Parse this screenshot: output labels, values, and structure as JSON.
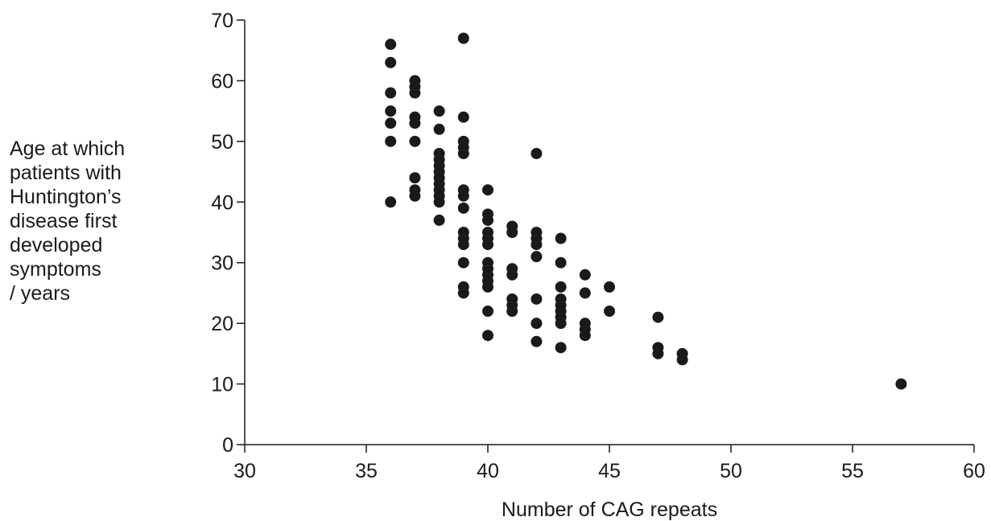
{
  "chart_data": {
    "type": "scatter",
    "title": "",
    "xlabel": "Number of CAG repeats",
    "ylabel_lines": [
      "Age at which",
      "patients with",
      "Huntington’s",
      "disease first",
      "developed",
      "symptoms",
      "/ years"
    ],
    "xlim": [
      30,
      60
    ],
    "ylim": [
      0,
      70
    ],
    "x_ticks": [
      30,
      35,
      40,
      45,
      50,
      55,
      60
    ],
    "y_ticks": [
      0,
      10,
      20,
      30,
      40,
      50,
      60,
      70
    ],
    "grid": false,
    "marker_color": "#1a1a1a",
    "points": [
      [
        36,
        66
      ],
      [
        36,
        63
      ],
      [
        36,
        58
      ],
      [
        36,
        55
      ],
      [
        36,
        53
      ],
      [
        36,
        50
      ],
      [
        36,
        40
      ],
      [
        37,
        60
      ],
      [
        37,
        59
      ],
      [
        37,
        58
      ],
      [
        37,
        54
      ],
      [
        37,
        53
      ],
      [
        37,
        50
      ],
      [
        37,
        44
      ],
      [
        37,
        42
      ],
      [
        37,
        41
      ],
      [
        38,
        55
      ],
      [
        38,
        52
      ],
      [
        38,
        48
      ],
      [
        38,
        47
      ],
      [
        38,
        46
      ],
      [
        38,
        45
      ],
      [
        38,
        44
      ],
      [
        38,
        43
      ],
      [
        38,
        42
      ],
      [
        38,
        41
      ],
      [
        38,
        40
      ],
      [
        38,
        37
      ],
      [
        39,
        67
      ],
      [
        39,
        54
      ],
      [
        39,
        50
      ],
      [
        39,
        49
      ],
      [
        39,
        48
      ],
      [
        39,
        42
      ],
      [
        39,
        41
      ],
      [
        39,
        39
      ],
      [
        39,
        35
      ],
      [
        39,
        34
      ],
      [
        39,
        33
      ],
      [
        39,
        30
      ],
      [
        39,
        26
      ],
      [
        39,
        25
      ],
      [
        40,
        42
      ],
      [
        40,
        38
      ],
      [
        40,
        37
      ],
      [
        40,
        35
      ],
      [
        40,
        34
      ],
      [
        40,
        33
      ],
      [
        40,
        30
      ],
      [
        40,
        29
      ],
      [
        40,
        28
      ],
      [
        40,
        27
      ],
      [
        40,
        26
      ],
      [
        40,
        22
      ],
      [
        40,
        18
      ],
      [
        41,
        36
      ],
      [
        41,
        35
      ],
      [
        41,
        29
      ],
      [
        41,
        28
      ],
      [
        41,
        24
      ],
      [
        41,
        23
      ],
      [
        41,
        22
      ],
      [
        42,
        48
      ],
      [
        42,
        35
      ],
      [
        42,
        34
      ],
      [
        42,
        33
      ],
      [
        42,
        31
      ],
      [
        42,
        24
      ],
      [
        42,
        20
      ],
      [
        42,
        17
      ],
      [
        43,
        34
      ],
      [
        43,
        30
      ],
      [
        43,
        26
      ],
      [
        43,
        24
      ],
      [
        43,
        23
      ],
      [
        43,
        22
      ],
      [
        43,
        21
      ],
      [
        43,
        20
      ],
      [
        43,
        16
      ],
      [
        44,
        28
      ],
      [
        44,
        25
      ],
      [
        44,
        20
      ],
      [
        44,
        19
      ],
      [
        44,
        18
      ],
      [
        45,
        26
      ],
      [
        45,
        22
      ],
      [
        47,
        21
      ],
      [
        47,
        16
      ],
      [
        47,
        15
      ],
      [
        48,
        15
      ],
      [
        48,
        14
      ],
      [
        57,
        10
      ]
    ]
  }
}
